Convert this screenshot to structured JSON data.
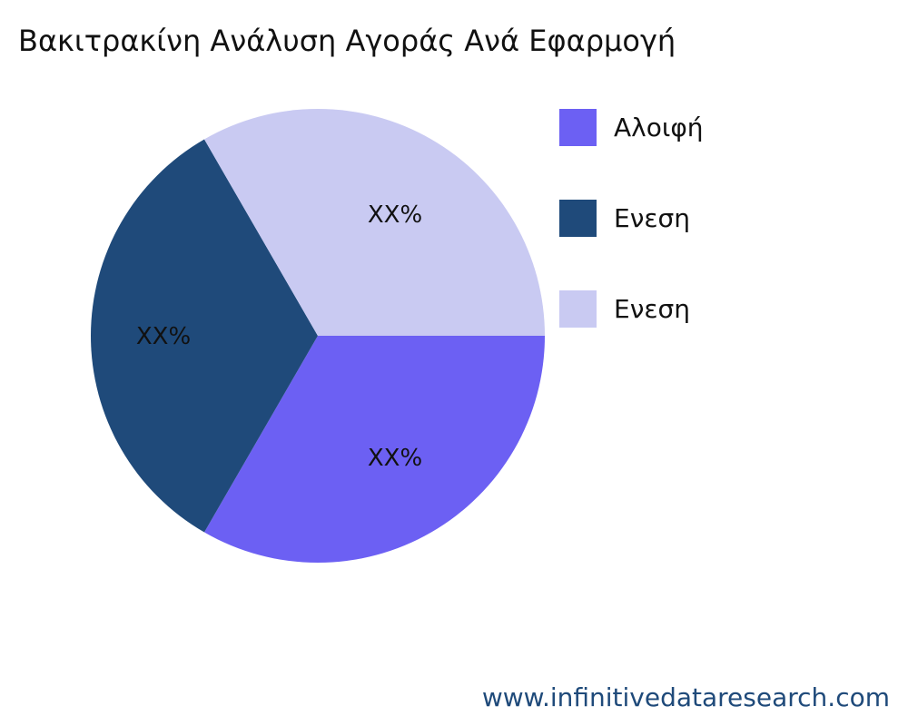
{
  "chart_data": {
    "type": "pie",
    "title": "Βακιτρακίνη Ανάλυση Αγοράς Ανά Εφαρμογή",
    "slices": [
      {
        "name": "Αλοιφή",
        "value": 33.33,
        "label": "XX%",
        "color": "#6c60f3"
      },
      {
        "name": "Ενεση",
        "value": 33.33,
        "label": "XX%",
        "color": "#1f4a7a"
      },
      {
        "name": "Ενεση",
        "value": 33.33,
        "label": "XX%",
        "color": "#c9caf2"
      }
    ],
    "legend": "right"
  },
  "footer": "www.infinitivedataresearch.com"
}
